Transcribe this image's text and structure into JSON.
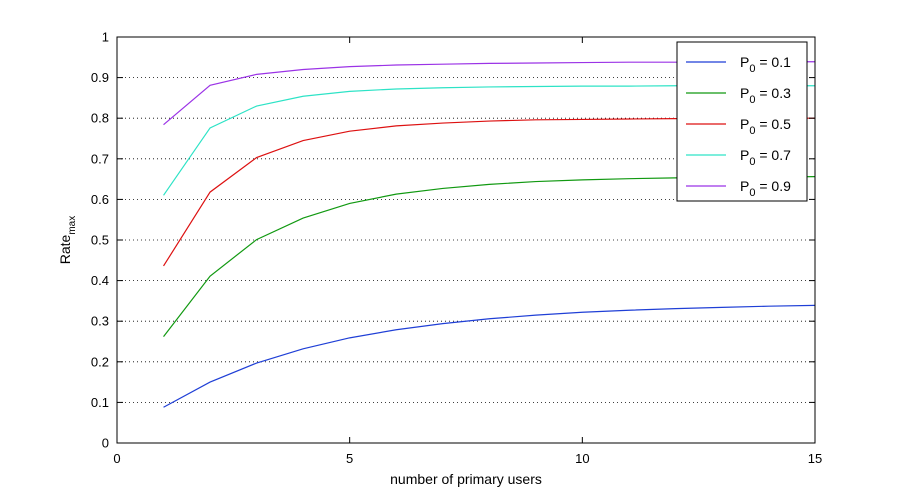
{
  "chart_data": {
    "type": "line",
    "xlabel": "number of primary users",
    "ylabel": {
      "main": "Rate",
      "sub": "max"
    },
    "xlim": [
      0,
      15
    ],
    "ylim": [
      0,
      1
    ],
    "xticks": [
      0,
      5,
      10,
      15
    ],
    "xtick_labels": [
      "0",
      "5",
      "10",
      "15"
    ],
    "yticks": [
      0,
      0.1,
      0.2,
      0.3,
      0.4,
      0.5,
      0.6,
      0.7,
      0.8,
      0.9,
      1
    ],
    "ytick_labels": [
      "0",
      "0.1",
      "0.2",
      "0.3",
      "0.4",
      "0.5",
      "0.6",
      "0.7",
      "0.8",
      "0.9",
      "1"
    ],
    "grid": "horizontal dotted",
    "legend_position": "top-right",
    "x": [
      1,
      2,
      3,
      4,
      5,
      6,
      7,
      8,
      9,
      10,
      11,
      12,
      13,
      14,
      15
    ],
    "series": [
      {
        "name": {
          "main": "P",
          "sub": "0",
          "rest": " = 0.1"
        },
        "color": "#1f3fd6",
        "values": [
          0.088,
          0.15,
          0.197,
          0.232,
          0.259,
          0.279,
          0.294,
          0.306,
          0.315,
          0.322,
          0.327,
          0.331,
          0.334,
          0.337,
          0.339
        ]
      },
      {
        "name": {
          "main": "P",
          "sub": "0",
          "rest": " = 0.3"
        },
        "color": "#119911",
        "values": [
          0.262,
          0.411,
          0.501,
          0.554,
          0.59,
          0.613,
          0.627,
          0.637,
          0.644,
          0.648,
          0.651,
          0.653,
          0.654,
          0.655,
          0.656
        ]
      },
      {
        "name": {
          "main": "P",
          "sub": "0",
          "rest": " = 0.5"
        },
        "color": "#dd1111",
        "values": [
          0.436,
          0.618,
          0.703,
          0.745,
          0.768,
          0.781,
          0.788,
          0.793,
          0.796,
          0.797,
          0.798,
          0.799,
          0.8,
          0.8,
          0.8
        ]
      },
      {
        "name": {
          "main": "P",
          "sub": "0",
          "rest": " = 0.7"
        },
        "color": "#2de3c6",
        "values": [
          0.61,
          0.776,
          0.83,
          0.854,
          0.866,
          0.872,
          0.875,
          0.877,
          0.878,
          0.879,
          0.879,
          0.88,
          0.88,
          0.88,
          0.88
        ]
      },
      {
        "name": {
          "main": "P",
          "sub": "0",
          "rest": " = 0.9"
        },
        "color": "#9b33e6",
        "values": [
          0.784,
          0.881,
          0.908,
          0.92,
          0.927,
          0.931,
          0.933,
          0.935,
          0.936,
          0.937,
          0.938,
          0.938,
          0.939,
          0.939,
          0.939
        ]
      }
    ]
  }
}
